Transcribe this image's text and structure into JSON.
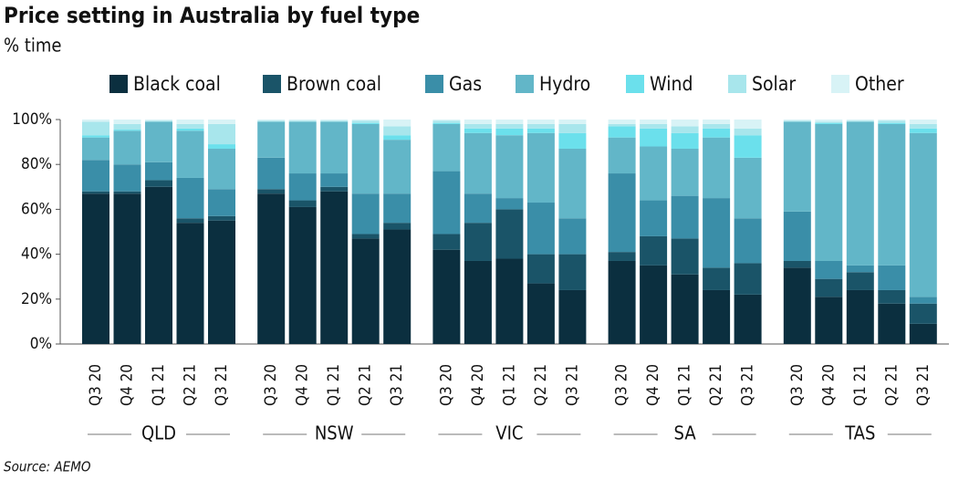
{
  "chart_data": {
    "type": "stacked-bar",
    "title": "Price setting in Australia by fuel type",
    "subtitle": "% time",
    "source": "Source: AEMO",
    "groups": [
      "QLD",
      "NSW",
      "VIC",
      "SA",
      "TAS"
    ],
    "categories": [
      "Q3 20",
      "Q4 20",
      "Q1 21",
      "Q2 21",
      "Q3 21",
      "Q3 20",
      "Q4 20",
      "Q1 21",
      "Q2 21",
      "Q3 21",
      "Q3 20",
      "Q4 20",
      "Q1 21",
      "Q2 21",
      "Q3 21",
      "Q3 20",
      "Q4 20",
      "Q1 21",
      "Q2 21",
      "Q3 21",
      "Q3 20",
      "Q4 20",
      "Q1 21",
      "Q2 21",
      "Q3 21"
    ],
    "series": [
      {
        "name": "Black coal",
        "color": "#0b2f3f",
        "values": [
          67,
          67,
          70,
          54,
          55,
          67,
          61,
          68,
          47,
          51,
          42,
          37,
          38,
          27,
          24,
          37,
          35,
          31,
          24,
          22,
          34,
          21,
          24,
          18,
          9
        ]
      },
      {
        "name": "Brown coal",
        "color": "#1a5468",
        "values": [
          1,
          1,
          3,
          2,
          2,
          2,
          3,
          2,
          2,
          3,
          7,
          17,
          22,
          13,
          16,
          4,
          13,
          16,
          10,
          14,
          3,
          8,
          8,
          6,
          9
        ]
      },
      {
        "name": "Gas",
        "color": "#3a8ea8",
        "values": [
          14,
          12,
          8,
          18,
          12,
          14,
          12,
          6,
          18,
          13,
          28,
          13,
          5,
          23,
          16,
          35,
          16,
          19,
          31,
          20,
          22,
          8,
          3,
          11,
          3
        ]
      },
      {
        "name": "Hydro",
        "color": "#62b6c8",
        "values": [
          10,
          15,
          18,
          21,
          18,
          16,
          23,
          23,
          31,
          24,
          21,
          27,
          28,
          31,
          31,
          16,
          24,
          21,
          27,
          27,
          40,
          61,
          64,
          63,
          73
        ]
      },
      {
        "name": "Wind",
        "color": "#6be0ec",
        "values": [
          1,
          0.5,
          0,
          1,
          2,
          0,
          0,
          0,
          0.5,
          2,
          0.5,
          2,
          3,
          2,
          7,
          5,
          8,
          7,
          4,
          10,
          0,
          0.5,
          0,
          0.5,
          2
        ]
      },
      {
        "name": "Solar",
        "color": "#a8e6ec",
        "values": [
          6,
          2.5,
          0.5,
          2,
          9,
          0.5,
          0.5,
          0.5,
          1,
          4,
          1,
          2,
          2,
          2,
          4,
          1,
          2,
          3,
          2,
          3,
          0.5,
          0.5,
          0.5,
          1,
          2
        ]
      },
      {
        "name": "Other",
        "color": "#d8f3f6",
        "values": [
          1,
          2,
          0.5,
          2,
          2,
          0.5,
          0.5,
          0.5,
          0.5,
          3,
          0.5,
          2,
          2,
          2,
          2,
          2,
          2,
          3,
          2,
          4,
          0.5,
          1,
          0.5,
          0.5,
          2
        ]
      }
    ],
    "ylim": [
      0,
      100
    ],
    "yticks": [
      {
        "value": 0,
        "label": "0%"
      },
      {
        "value": 20,
        "label": "20%"
      },
      {
        "value": 40,
        "label": "40%"
      },
      {
        "value": 60,
        "label": "60%"
      },
      {
        "value": 80,
        "label": "80%"
      },
      {
        "value": 100,
        "label": "100%"
      }
    ],
    "grid": false
  }
}
